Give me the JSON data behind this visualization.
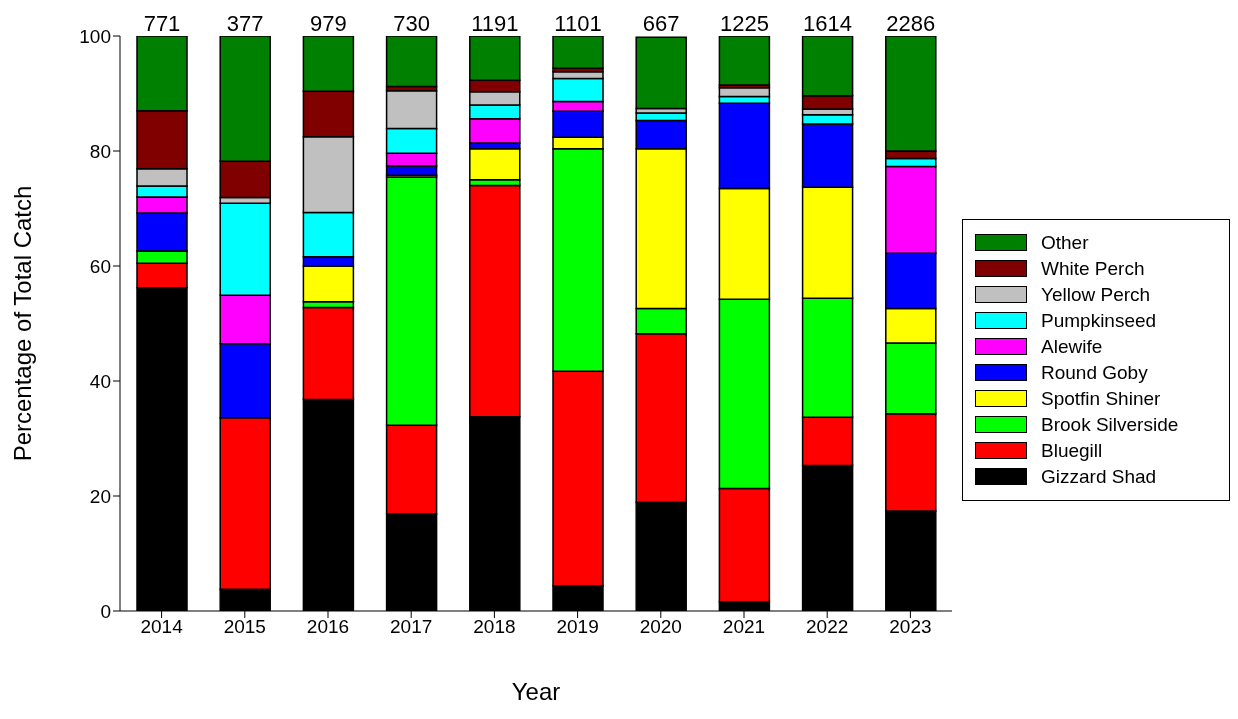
{
  "chart_data": {
    "type": "bar",
    "stacked": true,
    "xlabel": "Year",
    "ylabel": "Percentage of Total Catch",
    "categories": [
      "2014",
      "2015",
      "2016",
      "2017",
      "2018",
      "2019",
      "2020",
      "2021",
      "2022",
      "2023"
    ],
    "ylim": [
      0,
      100
    ],
    "yticks": [
      0,
      20,
      40,
      60,
      80,
      100
    ],
    "grid": false,
    "legend": "right",
    "annotations": [
      {
        "text": "771",
        "x": "2014",
        "y": 100
      },
      {
        "text": "377",
        "x": "2015",
        "y": 100
      },
      {
        "text": "979",
        "x": "2016",
        "y": 100
      },
      {
        "text": "730",
        "x": "2017",
        "y": 100
      },
      {
        "text": "1191",
        "x": "2018",
        "y": 100
      },
      {
        "text": "1101",
        "x": "2019",
        "y": 100
      },
      {
        "text": "667",
        "x": "2020",
        "y": 100
      },
      {
        "text": "1225",
        "x": "2021",
        "y": 100
      },
      {
        "text": "1614",
        "x": "2022",
        "y": 100
      },
      {
        "text": "2286",
        "x": "2023",
        "y": 100
      }
    ],
    "series": [
      {
        "name": "Gizzard Shad",
        "color": "#000000",
        "values": [
          56.2,
          3.8,
          36.8,
          16.9,
          33.8,
          4.4,
          18.9,
          1.6,
          25.3,
          17.4
        ]
      },
      {
        "name": "Bluegill",
        "color": "#ff0000",
        "values": [
          4.3,
          29.8,
          16.0,
          15.4,
          40.2,
          37.3,
          29.3,
          19.7,
          8.4,
          16.9
        ]
      },
      {
        "name": "Brook Silverside",
        "color": "#00ff00",
        "values": [
          2.1,
          0,
          1.0,
          43.2,
          1.0,
          38.7,
          4.4,
          32.9,
          20.7,
          12.3
        ]
      },
      {
        "name": "Spotfin Shiner",
        "color": "#ffff00",
        "values": [
          0,
          0,
          6.2,
          0.3,
          5.4,
          2.0,
          27.8,
          19.3,
          19.3,
          6.0
        ]
      },
      {
        "name": "Round Goby",
        "color": "#0000ff",
        "values": [
          6.6,
          12.9,
          1.6,
          1.6,
          1.0,
          4.5,
          4.9,
          14.8,
          11.0,
          9.6
        ]
      },
      {
        "name": "Alewife",
        "color": "#ff00ff",
        "values": [
          2.8,
          8.4,
          0,
          2.2,
          4.2,
          1.7,
          0,
          0,
          0,
          15.1
        ]
      },
      {
        "name": "Pumpkinseed",
        "color": "#00ffff",
        "values": [
          1.9,
          16.0,
          7.7,
          4.3,
          2.4,
          4.0,
          1.3,
          1.2,
          1.6,
          1.4
        ]
      },
      {
        "name": "Yellow Perch",
        "color": "#c0c0c0",
        "values": [
          3.0,
          1.0,
          13.2,
          6.6,
          2.3,
          1.2,
          0.8,
          1.5,
          1.0,
          0
        ]
      },
      {
        "name": "White Perch",
        "color": "#800000",
        "values": [
          10.1,
          6.3,
          7.9,
          0.7,
          2.0,
          0.6,
          null,
          0.5,
          2.3,
          1.3
        ]
      },
      {
        "name": "Other",
        "color": "#008000",
        "values": [
          13.0,
          21.8,
          9.6,
          8.8,
          7.7,
          5.6,
          12.4,
          8.5,
          10.4,
          20.0
        ]
      }
    ]
  }
}
